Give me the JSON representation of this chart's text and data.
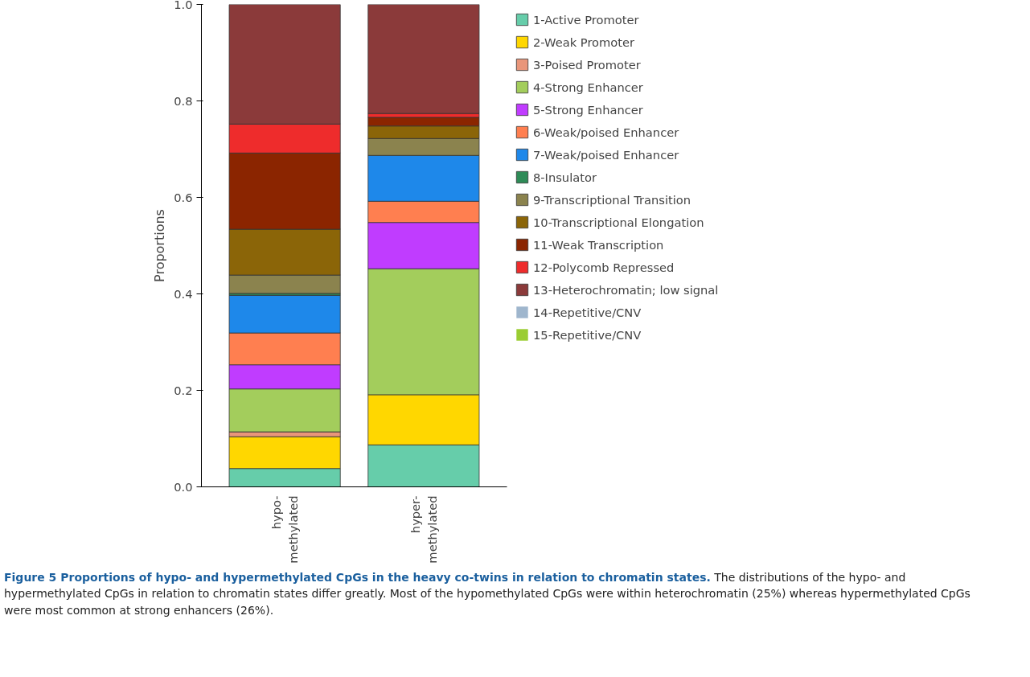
{
  "chart_data": {
    "type": "bar",
    "stacked": true,
    "title": "Figure 5 Proportions of hypo- and hypermethylated CpGs in the heavy co-twins in relation to chromatin states.",
    "annotations": [
      "The distributions of the hypo- and hypermethylated CpGs in relation to chromatin states differ greatly. Most of the hypomethylated CpGs were within heterochromatin (25%) whereas hypermethylated CpGs were most common at strong enhancers (26%)."
    ],
    "ylabel": "Proportions",
    "categories": [
      "hypo-\nmethylated",
      "hyper-\nmethylated"
    ],
    "ylim": [
      0,
      1
    ],
    "yticks": [
      {
        "value": 0,
        "label": "0.0"
      },
      0.2,
      0.4,
      0.6,
      0.8,
      {
        "value": 1,
        "label": "1.0"
      }
    ],
    "grid": false,
    "legend": "right",
    "series": [
      {
        "name": "1-Active Promoter",
        "color": "#66cdaa",
        "values": [
          0.038,
          0.087
        ]
      },
      {
        "name": "2-Weak Promoter",
        "color": "#ffd700",
        "values": [
          0.066,
          0.104
        ]
      },
      {
        "name": "3-Poised Promoter",
        "color": "#e9967a",
        "values": [
          0.01,
          0
        ]
      },
      {
        "name": "4-Strong Enhancer",
        "color": "#a3cd5c",
        "values": [
          0.089,
          0.261
        ]
      },
      {
        "name": "5-Strong Enhancer",
        "color": "#c03cff",
        "values": [
          0.05,
          0.096
        ]
      },
      {
        "name": "6-Weak/poised Enhancer",
        "color": "#ff7f50",
        "values": [
          0.066,
          0.044
        ]
      },
      {
        "name": "7-Weak/poised Enhancer",
        "color": "#1e88ea",
        "values": [
          0.078,
          0.095
        ]
      },
      {
        "name": "8-Insulator",
        "color": "#2e8b57",
        "values": [
          0.004,
          0
        ]
      },
      {
        "name": "9-Transcriptional Transition",
        "color": "#8b834e",
        "values": [
          0.038,
          0.035
        ]
      },
      {
        "name": "10-Transcriptional Elongation",
        "color": "#8b6508",
        "values": [
          0.095,
          0.026
        ]
      },
      {
        "name": "11-Weak Transcription",
        "color": "#8b2500",
        "values": [
          0.158,
          0.018
        ]
      },
      {
        "name": "12-Polycomb Repressed",
        "color": "#ee2c2c",
        "values": [
          0.06,
          0.008
        ]
      },
      {
        "name": "13-Heterochromatin; low signal",
        "color": "#8b3a3a",
        "values": [
          0.248,
          0.226
        ]
      },
      {
        "name": "14-Repetitive/CNV",
        "color": "#9fb6cd",
        "values": [
          0,
          0
        ]
      },
      {
        "name": "15-Repetitive/CNV",
        "color": "#9acd32",
        "values": [
          0,
          0
        ]
      }
    ]
  }
}
